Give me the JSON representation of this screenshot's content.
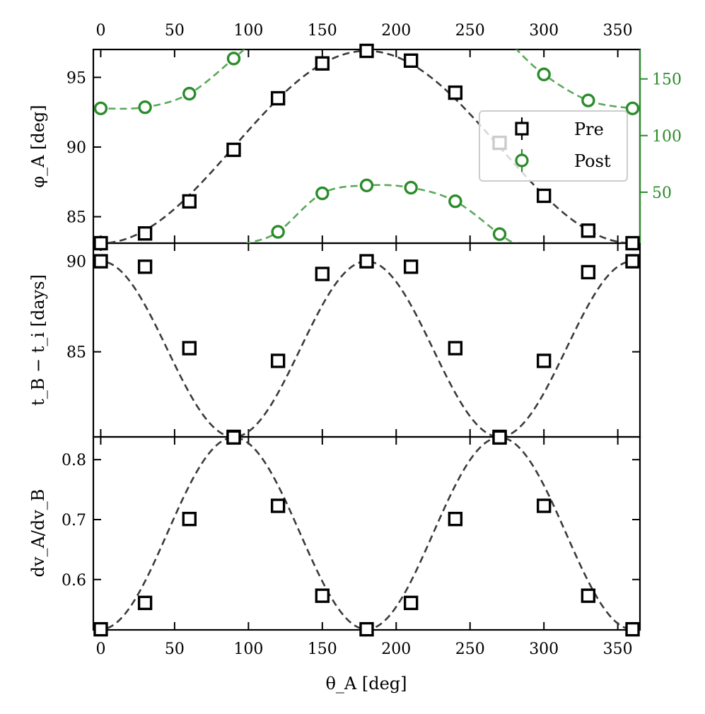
{
  "colors": {
    "pre": "#000000",
    "pre_curve": "#3a3a3a",
    "post": "#2a8c2a",
    "post_curve": "#5aa85a",
    "axis": "#000000",
    "legend_border": "#cccccc"
  },
  "chart_data": [
    {
      "type": "scatter",
      "panel": "top",
      "ylabel": "φ_A [deg]",
      "xlim": [
        -5,
        365
      ],
      "ylim": [
        83.1,
        97.0
      ],
      "x_ticks": [
        0,
        50,
        100,
        150,
        200,
        250,
        300,
        350
      ],
      "top_x_ticks": [
        0,
        50,
        100,
        150,
        200,
        250,
        300,
        350
      ],
      "y_ticks": [
        85,
        90,
        95
      ],
      "secondary_y": {
        "ylim": [
          5,
          176
        ],
        "ticks": [
          50,
          100,
          150
        ],
        "color": "#2a8c2a"
      },
      "legend": {
        "placement": "right",
        "entries": [
          "Pre",
          "Post"
        ]
      },
      "series": [
        {
          "name": "Pre",
          "marker": "square",
          "axis": "left",
          "x": [
            0,
            30,
            60,
            90,
            120,
            150,
            180,
            210,
            240,
            270,
            300,
            330,
            360
          ],
          "y": [
            83.1,
            83.8,
            86.1,
            89.8,
            93.5,
            96.0,
            96.9,
            96.2,
            93.9,
            90.3,
            86.5,
            84.0,
            83.1
          ],
          "fit": {
            "kind": "cosine",
            "mean": 90.0,
            "amplitude": 6.9,
            "period": 360,
            "phase": 180
          }
        },
        {
          "name": "Post",
          "marker": "circle",
          "axis": "right",
          "x": [
            0,
            30,
            60,
            90,
            120,
            150,
            180,
            210,
            240,
            270,
            300,
            330,
            360
          ],
          "y": [
            124,
            125,
            137,
            168,
            15,
            49,
            56,
            54,
            42,
            13,
            154,
            131,
            124
          ],
          "fit": {
            "kind": "wrapped-cosine",
            "period": 360
          }
        }
      ]
    },
    {
      "type": "scatter",
      "panel": "middle",
      "ylabel": "t_B − t_i [days]",
      "xlim": [
        -5,
        365
      ],
      "ylim": [
        80.3,
        91.0
      ],
      "x_ticks": [
        0,
        50,
        100,
        150,
        200,
        250,
        300,
        350
      ],
      "y_ticks": [
        85,
        90
      ],
      "series": [
        {
          "name": "Pre",
          "marker": "square",
          "x": [
            0,
            30,
            60,
            90,
            120,
            150,
            180,
            210,
            240,
            270,
            300,
            330,
            360
          ],
          "y": [
            90.0,
            89.7,
            85.2,
            80.3,
            84.5,
            89.3,
            90.0,
            89.7,
            85.2,
            80.3,
            84.5,
            89.4,
            90.0
          ],
          "fit": {
            "kind": "cosine-squared",
            "min": 80.3,
            "max": 90.0,
            "period": 180
          }
        }
      ]
    },
    {
      "type": "scatter",
      "panel": "bottom",
      "xlabel": "θ_A [deg]",
      "ylabel": "dv_A/dv_B",
      "xlim": [
        -5,
        365
      ],
      "ylim": [
        0.516,
        0.838
      ],
      "x_ticks": [
        0,
        50,
        100,
        150,
        200,
        250,
        300,
        350
      ],
      "y_ticks": [
        0.6,
        0.7,
        0.8
      ],
      "y_tick_labels": [
        "0.6",
        "0.7",
        "0.8"
      ],
      "series": [
        {
          "name": "Pre",
          "marker": "square",
          "x": [
            0,
            30,
            60,
            90,
            120,
            150,
            180,
            210,
            240,
            270,
            300,
            330,
            360
          ],
          "y": [
            0.517,
            0.561,
            0.701,
            0.837,
            0.723,
            0.573,
            0.517,
            0.561,
            0.701,
            0.837,
            0.723,
            0.573,
            0.517
          ],
          "fit": {
            "kind": "sine-squared",
            "min": 0.517,
            "max": 0.837,
            "period": 180
          }
        }
      ]
    }
  ]
}
